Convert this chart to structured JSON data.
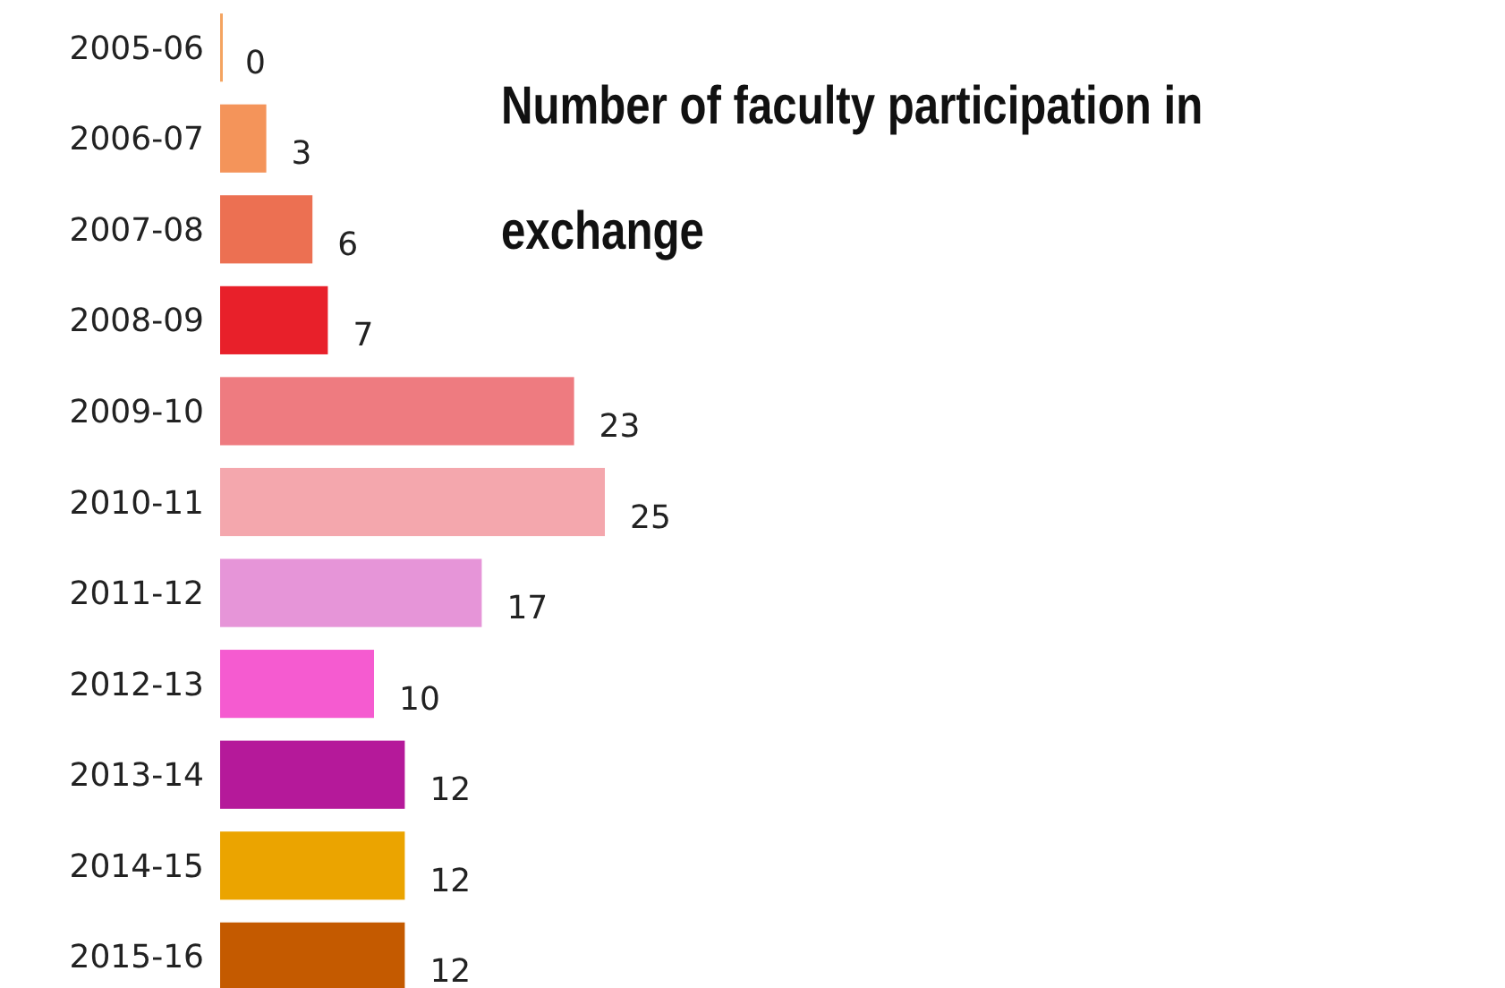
{
  "chart_data": {
    "type": "bar",
    "orientation": "horizontal",
    "title": "Number of faculty participation in exchange",
    "categories": [
      "2005-06",
      "2006-07",
      "2007-08",
      "2008-09",
      "2009-10",
      "2010-11",
      "2011-12",
      "2012-13",
      "2013-14",
      "2014-15",
      "2015-16"
    ],
    "values": [
      0,
      3,
      6,
      7,
      23,
      25,
      17,
      10,
      12,
      12,
      12
    ],
    "colors": [
      "#f4a460",
      "#f4945a",
      "#ec7052",
      "#e8202a",
      "#ee7b80",
      "#f4a7ad",
      "#e695d8",
      "#f55bd0",
      "#b5199a",
      "#eba400",
      "#c45a00"
    ],
    "data_labels": true
  }
}
